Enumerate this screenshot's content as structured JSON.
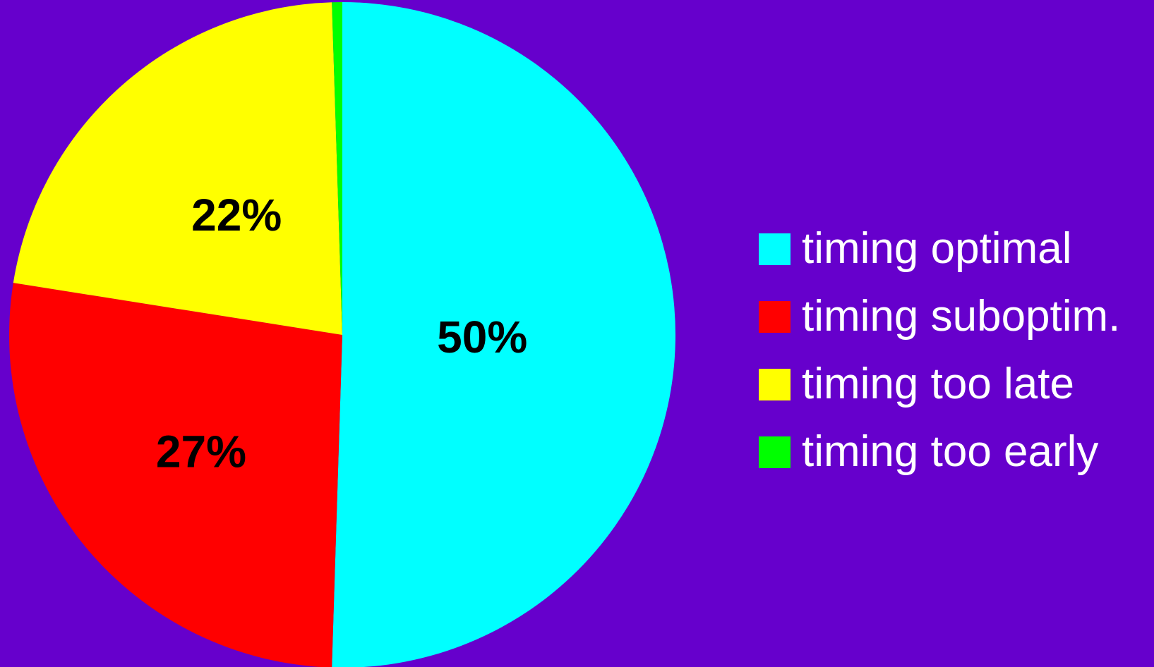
{
  "colors": {
    "background": "#6600cc",
    "label_text": "#000000",
    "legend_text": "#ffffff"
  },
  "chart_data": {
    "type": "pie",
    "title": "",
    "start_angle_deg": 0,
    "direction": "clockwise",
    "legend_position": "right",
    "slices": [
      {
        "name": "timing optimal",
        "value": 50.5,
        "label": "50%",
        "color": "#00ffff"
      },
      {
        "name": "timing suboptim.",
        "value": 27,
        "label": "27%",
        "color": "#ff0000"
      },
      {
        "name": "timing too late",
        "value": 22,
        "label": "22%",
        "color": "#ffff00"
      },
      {
        "name": "timing too early",
        "value": 0.5,
        "label": "",
        "color": "#00ff00"
      }
    ]
  }
}
